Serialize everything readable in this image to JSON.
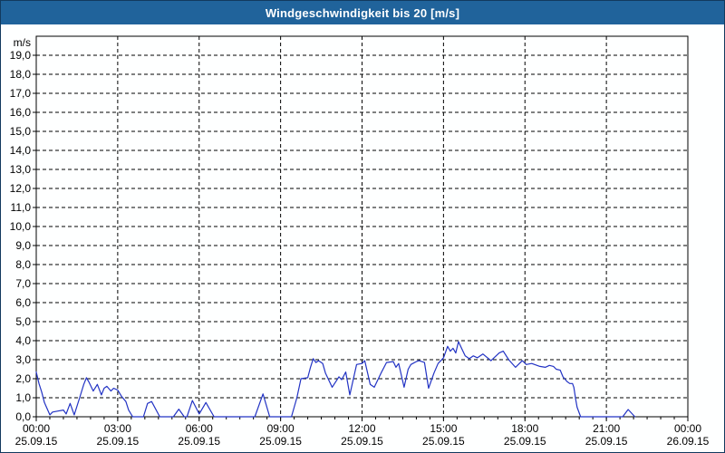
{
  "window": {
    "title": "Windgeschwindigkeit bis 20 [m/s]"
  },
  "colors": {
    "titlebar_bg": "#20639b",
    "window_border": "#123a5e",
    "inner_border": "#1f6095",
    "plot_border": "#000000",
    "grid": "#000000",
    "line": "#2233c4",
    "background": "#feffff"
  },
  "chart_data": {
    "type": "line",
    "title": "Windgeschwindigkeit bis 20 [m/s]",
    "y_unit": "m/s",
    "ylim": [
      0,
      20
    ],
    "y_tick_step": 1.0,
    "y_tick_labels": [
      "0,0",
      "1,0",
      "2,0",
      "3,0",
      "4,0",
      "5,0",
      "6,0",
      "7,0",
      "8,0",
      "9,0",
      "10,0",
      "11,0",
      "12,0",
      "13,0",
      "14,0",
      "15,0",
      "16,0",
      "17,0",
      "18,0",
      "19,0"
    ],
    "x_span_hours": 24,
    "x_minor_tick_hours": 0.5,
    "x_major_tick_hours": 3,
    "x_major_ticks": [
      {
        "time": "00:00",
        "date": "25.09.15"
      },
      {
        "time": "03:00",
        "date": "25.09.15"
      },
      {
        "time": "06:00",
        "date": "25.09.15"
      },
      {
        "time": "09:00",
        "date": "25.09.15"
      },
      {
        "time": "12:00",
        "date": "25.09.15"
      },
      {
        "time": "15:00",
        "date": "25.09.15"
      },
      {
        "time": "18:00",
        "date": "25.09.15"
      },
      {
        "time": "21:00",
        "date": "25.09.15"
      },
      {
        "time": "00:00",
        "date": "26.09.15"
      }
    ],
    "grid": "dashed",
    "legend": "none",
    "series": [
      {
        "name": "Windgeschwindigkeit",
        "color": "#2233c4",
        "points": [
          [
            0.0,
            2.35
          ],
          [
            0.1,
            1.75
          ],
          [
            0.2,
            1.3
          ],
          [
            0.3,
            0.75
          ],
          [
            0.5,
            0.1
          ],
          [
            0.6,
            0.25
          ],
          [
            0.8,
            0.3
          ],
          [
            1.0,
            0.35
          ],
          [
            1.1,
            0.15
          ],
          [
            1.25,
            0.7
          ],
          [
            1.4,
            0.1
          ],
          [
            1.6,
            1.0
          ],
          [
            1.75,
            1.7
          ],
          [
            1.85,
            2.05
          ],
          [
            1.95,
            1.8
          ],
          [
            2.1,
            1.35
          ],
          [
            2.25,
            1.7
          ],
          [
            2.4,
            1.15
          ],
          [
            2.5,
            1.5
          ],
          [
            2.6,
            1.6
          ],
          [
            2.75,
            1.35
          ],
          [
            2.85,
            1.5
          ],
          [
            3.0,
            1.4
          ],
          [
            3.15,
            1.05
          ],
          [
            3.3,
            0.8
          ],
          [
            3.4,
            0.35
          ],
          [
            3.55,
            0.0
          ],
          [
            3.95,
            0.0
          ],
          [
            4.1,
            0.7
          ],
          [
            4.25,
            0.8
          ],
          [
            4.55,
            0.0
          ],
          [
            5.05,
            0.0
          ],
          [
            5.25,
            0.4
          ],
          [
            5.45,
            0.0
          ],
          [
            5.55,
            0.0
          ],
          [
            5.75,
            0.85
          ],
          [
            6.0,
            0.15
          ],
          [
            6.25,
            0.75
          ],
          [
            6.55,
            0.0
          ],
          [
            8.05,
            0.0
          ],
          [
            8.35,
            1.2
          ],
          [
            8.6,
            0.0
          ],
          [
            9.4,
            0.0
          ],
          [
            9.6,
            1.0
          ],
          [
            9.75,
            2.0
          ],
          [
            10.0,
            2.05
          ],
          [
            10.1,
            2.6
          ],
          [
            10.2,
            3.05
          ],
          [
            10.3,
            2.85
          ],
          [
            10.4,
            2.95
          ],
          [
            10.55,
            2.8
          ],
          [
            10.65,
            2.3
          ],
          [
            10.9,
            1.55
          ],
          [
            11.15,
            2.1
          ],
          [
            11.25,
            1.95
          ],
          [
            11.4,
            2.35
          ],
          [
            11.55,
            1.15
          ],
          [
            11.8,
            2.75
          ],
          [
            12.0,
            2.8
          ],
          [
            12.1,
            2.95
          ],
          [
            12.3,
            1.7
          ],
          [
            12.45,
            1.55
          ],
          [
            12.7,
            2.3
          ],
          [
            12.9,
            2.85
          ],
          [
            13.15,
            2.9
          ],
          [
            13.25,
            2.6
          ],
          [
            13.35,
            2.8
          ],
          [
            13.55,
            1.55
          ],
          [
            13.7,
            2.5
          ],
          [
            13.8,
            2.75
          ],
          [
            14.0,
            2.9
          ],
          [
            14.1,
            2.95
          ],
          [
            14.3,
            2.85
          ],
          [
            14.45,
            1.5
          ],
          [
            14.65,
            2.3
          ],
          [
            14.8,
            2.8
          ],
          [
            15.0,
            3.1
          ],
          [
            15.15,
            3.7
          ],
          [
            15.25,
            3.45
          ],
          [
            15.35,
            3.6
          ],
          [
            15.45,
            3.35
          ],
          [
            15.55,
            3.95
          ],
          [
            15.7,
            3.5
          ],
          [
            15.8,
            3.2
          ],
          [
            15.95,
            3.05
          ],
          [
            16.1,
            3.2
          ],
          [
            16.25,
            3.1
          ],
          [
            16.45,
            3.3
          ],
          [
            16.75,
            2.95
          ],
          [
            17.05,
            3.35
          ],
          [
            17.2,
            3.45
          ],
          [
            17.4,
            3.0
          ],
          [
            17.65,
            2.6
          ],
          [
            17.9,
            2.95
          ],
          [
            18.05,
            2.75
          ],
          [
            18.25,
            2.8
          ],
          [
            18.55,
            2.65
          ],
          [
            18.75,
            2.6
          ],
          [
            18.9,
            2.7
          ],
          [
            19.05,
            2.65
          ],
          [
            19.15,
            2.5
          ],
          [
            19.3,
            2.45
          ],
          [
            19.4,
            2.1
          ],
          [
            19.55,
            1.85
          ],
          [
            19.65,
            1.75
          ],
          [
            19.75,
            1.75
          ],
          [
            19.8,
            1.55
          ],
          [
            19.87,
            0.9
          ],
          [
            19.92,
            0.5
          ],
          [
            20.05,
            0.0
          ],
          [
            21.6,
            0.0
          ],
          [
            21.8,
            0.38
          ],
          [
            22.05,
            0.0
          ]
        ]
      }
    ]
  }
}
